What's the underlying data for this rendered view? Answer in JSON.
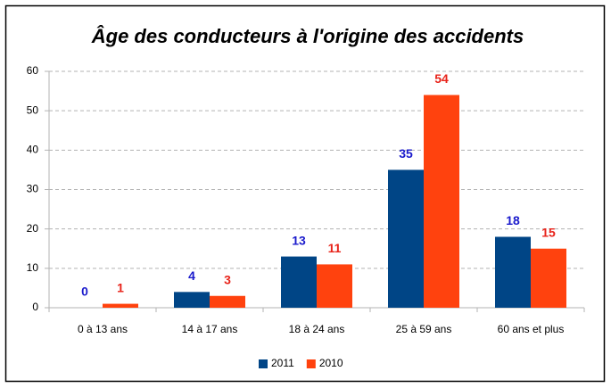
{
  "chart_data": {
    "type": "bar",
    "title": "Âge des conducteurs à l'origine des accidents",
    "categories": [
      "0 à 13 ans",
      "14 à 17 ans",
      "18 à 24 ans",
      "25 à 59 ans",
      "60 ans et plus"
    ],
    "series": [
      {
        "name": "2011",
        "color": "#004586",
        "label_color": "#1a1acc",
        "values": [
          0,
          4,
          13,
          35,
          18
        ]
      },
      {
        "name": "2010",
        "color": "#ff420e",
        "label_color": "#e8231a",
        "values": [
          1,
          3,
          11,
          54,
          15
        ]
      }
    ],
    "ylim": [
      0,
      60
    ],
    "yticks": [
      0,
      10,
      20,
      30,
      40,
      50,
      60
    ],
    "grid": true,
    "legend": "bottom"
  }
}
